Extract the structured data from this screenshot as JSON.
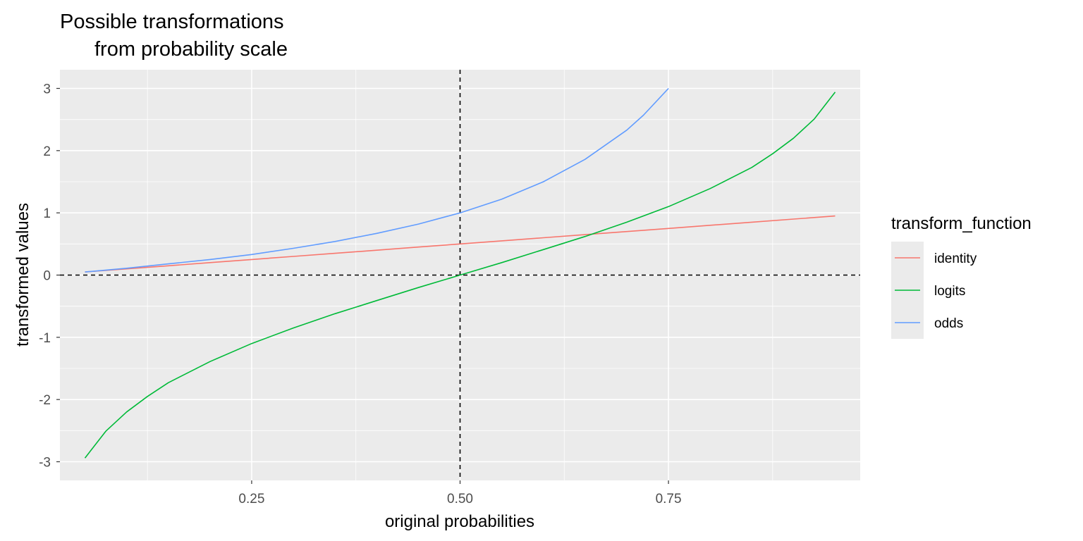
{
  "chart_data": {
    "type": "line",
    "title_lines": [
      "Possible transformations",
      "from probability scale"
    ],
    "xlabel": "original probabilities",
    "ylabel": "transformed values",
    "xlim": [
      0.02,
      0.98
    ],
    "ylim": [
      -3.3,
      3.3
    ],
    "x_ticks": [
      0.25,
      0.5,
      0.75
    ],
    "x_tick_labels": [
      "0.25",
      "0.50",
      "0.75"
    ],
    "y_ticks": [
      -3,
      -2,
      -1,
      0,
      1,
      2,
      3
    ],
    "y_tick_labels": [
      "-3",
      "-2",
      "-1",
      "0",
      "1",
      "2",
      "3"
    ],
    "grid": true,
    "reference_lines": {
      "x": 0.5,
      "y": 0
    },
    "legend": {
      "title": "transform_function",
      "position": "right"
    },
    "series": [
      {
        "name": "identity",
        "color": "#F8766D",
        "x": [
          0.05,
          0.1,
          0.15,
          0.2,
          0.25,
          0.3,
          0.35,
          0.4,
          0.45,
          0.5,
          0.55,
          0.6,
          0.65,
          0.7,
          0.75,
          0.8,
          0.85,
          0.9,
          0.95
        ],
        "y": [
          0.05,
          0.1,
          0.15,
          0.2,
          0.25,
          0.3,
          0.35,
          0.4,
          0.45,
          0.5,
          0.55,
          0.6,
          0.65,
          0.7,
          0.75,
          0.8,
          0.85,
          0.9,
          0.95
        ]
      },
      {
        "name": "logits",
        "color": "#00BA38",
        "x": [
          0.05,
          0.075,
          0.1,
          0.125,
          0.15,
          0.2,
          0.25,
          0.3,
          0.35,
          0.4,
          0.45,
          0.5,
          0.55,
          0.6,
          0.65,
          0.7,
          0.75,
          0.8,
          0.85,
          0.875,
          0.9,
          0.925,
          0.95
        ],
        "y": [
          -2.94,
          -2.51,
          -2.2,
          -1.95,
          -1.73,
          -1.39,
          -1.1,
          -0.85,
          -0.62,
          -0.41,
          -0.2,
          0.0,
          0.2,
          0.41,
          0.62,
          0.85,
          1.1,
          1.39,
          1.73,
          1.95,
          2.2,
          2.51,
          2.94
        ]
      },
      {
        "name": "odds",
        "color": "#619CFF",
        "x": [
          0.05,
          0.1,
          0.15,
          0.2,
          0.25,
          0.3,
          0.35,
          0.4,
          0.45,
          0.5,
          0.55,
          0.6,
          0.65,
          0.7,
          0.72,
          0.75
        ],
        "y": [
          0.05,
          0.11,
          0.18,
          0.25,
          0.33,
          0.43,
          0.54,
          0.67,
          0.82,
          1.0,
          1.22,
          1.5,
          1.86,
          2.33,
          2.57,
          3.0
        ]
      }
    ]
  }
}
